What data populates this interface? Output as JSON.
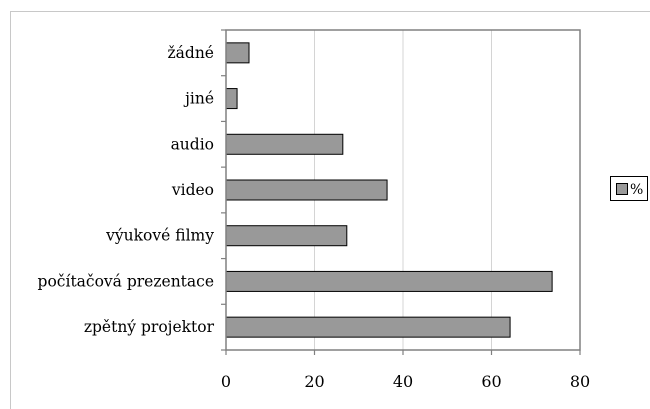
{
  "chart_data": {
    "type": "bar",
    "orientation": "horizontal",
    "categories": [
      "žádné",
      "jiné",
      "audio",
      "video",
      "výukové filmy",
      "počítačová prezentace",
      "zpětný projektor"
    ],
    "series": [
      {
        "name": "%",
        "values": [
          5.2,
          2.5,
          26.4,
          36.4,
          27.3,
          73.7,
          64.2
        ],
        "color": "#999999"
      }
    ],
    "xlim": [
      0,
      80
    ],
    "xticks": [
      0,
      20,
      40,
      60,
      80
    ],
    "grid": "vertical",
    "legend": "right"
  },
  "colors": {
    "bar_fill": "#999999",
    "bar_stroke": "#000000",
    "plot_border": "#808080",
    "gridline": "#d4d4d4",
    "frame": "#c8c8c8"
  }
}
